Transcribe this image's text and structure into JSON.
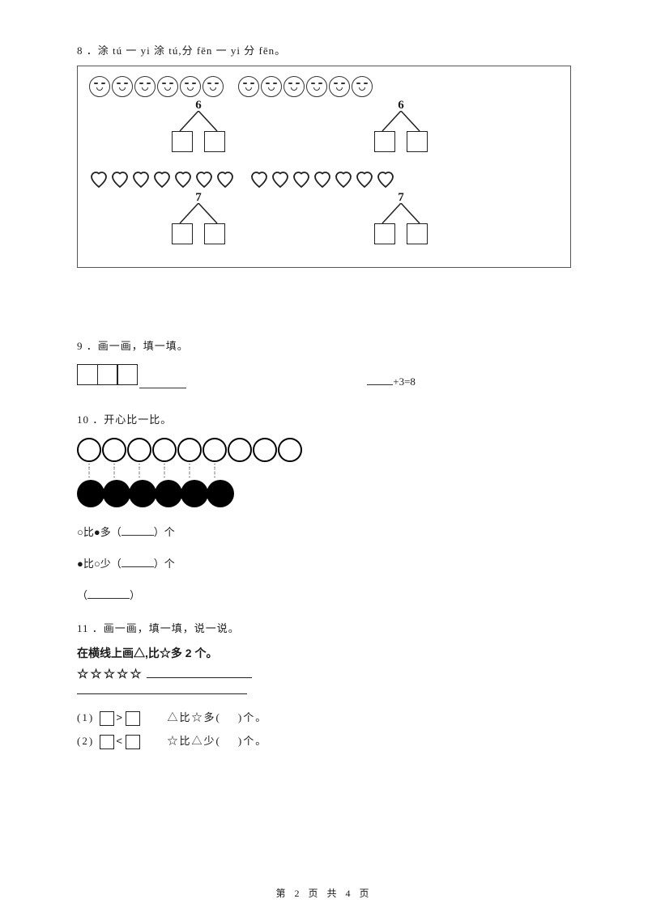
{
  "q8": {
    "label": "8 ．涂 tú 一 yi 涂 tú,分 fēn 一 yi 分 fēn。",
    "rows": [
      {
        "icon": "smile",
        "group1": 6,
        "group2": 6,
        "bond1_apex": "6",
        "bond2_apex": "6"
      },
      {
        "icon": "heart",
        "group1": 7,
        "group2": 7,
        "bond1_apex": "7",
        "bond2_apex": "7"
      }
    ]
  },
  "q9": {
    "label": "9 ．画一画，填一填。",
    "boxes": 3,
    "equation_suffix": "+3=8"
  },
  "q10": {
    "label": "10 ．开心比一比。",
    "open_circles": 9,
    "dot_columns": 6,
    "filled_circles": 6,
    "line1_prefix": "○比●多（",
    "line1_suffix": "）个",
    "line2_prefix": "●比○少（",
    "line2_suffix": "）个",
    "line3_prefix": "（",
    "line3_suffix": "）"
  },
  "q11": {
    "label": "11 ．画一画，填一填，说一说。",
    "heading": "在横线上画△,比☆多 2 个。",
    "stars_text": "☆☆☆☆☆",
    "sub1_left": "(1)",
    "sub1_mid": "△比☆多(",
    "sub1_end": ")个。",
    "sub2_left": "(2)",
    "sub2_mid": "☆比△少(",
    "sub2_end": ")个。",
    "gt": ">",
    "lt": "<"
  },
  "footer": "第 2 页 共 4 页"
}
